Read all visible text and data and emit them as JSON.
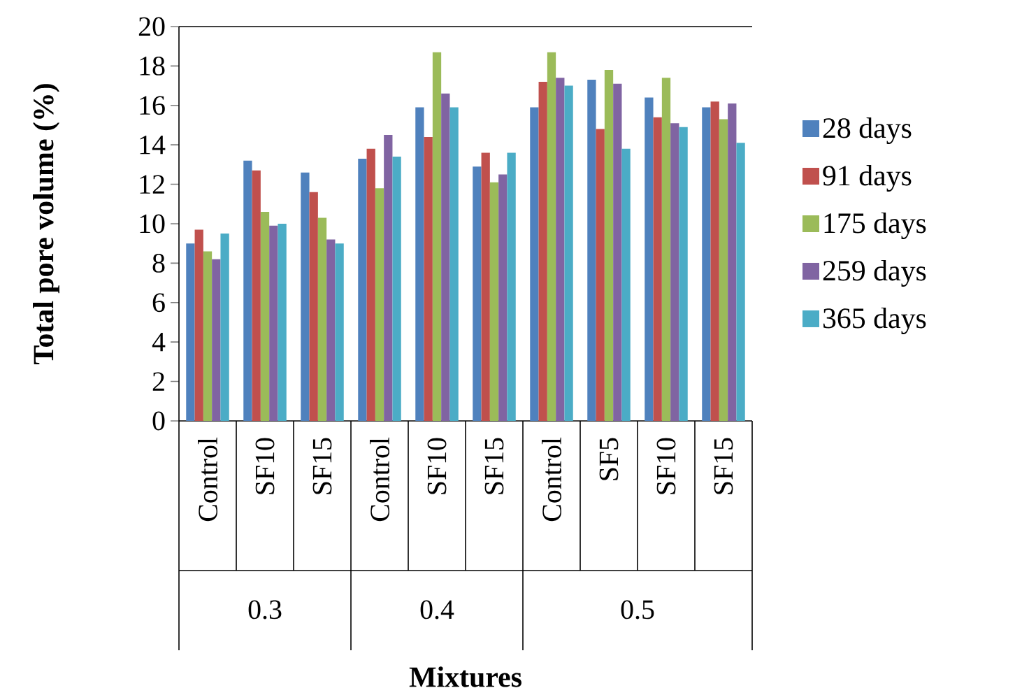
{
  "chart_data": {
    "type": "bar",
    "xlabel": "Mixtures",
    "ylabel": "Total pore volume (%)",
    "categories": [
      "Control",
      "SF10",
      "SF15",
      "Control",
      "SF10",
      "SF15",
      "Control",
      "SF5",
      "SF10",
      "SF15"
    ],
    "annotations": [
      "0.3",
      "0.4",
      "0.5"
    ],
    "series": [
      {
        "name": "28 days",
        "color": "#4f81bd",
        "values": [
          9.0,
          13.2,
          12.6,
          13.3,
          15.9,
          12.9,
          15.9,
          17.3,
          16.4,
          15.9
        ]
      },
      {
        "name": "91 days",
        "color": "#c0504d",
        "values": [
          9.7,
          12.7,
          11.6,
          13.8,
          14.4,
          13.6,
          17.2,
          14.8,
          15.4,
          16.2
        ]
      },
      {
        "name": "175 days",
        "color": "#9bbb59",
        "values": [
          8.6,
          10.6,
          10.3,
          11.8,
          18.7,
          12.1,
          18.7,
          17.8,
          17.4,
          15.3
        ]
      },
      {
        "name": "259 days",
        "color": "#8064a2",
        "values": [
          8.2,
          9.9,
          9.2,
          14.5,
          16.6,
          12.5,
          17.4,
          17.1,
          15.1,
          16.1
        ]
      },
      {
        "name": "365 days",
        "color": "#4bacc6",
        "values": [
          9.5,
          10.0,
          9.0,
          13.4,
          15.9,
          13.6,
          17.0,
          13.8,
          14.9,
          14.1
        ]
      }
    ],
    "ylim": [
      0,
      20
    ],
    "yticks": [
      0,
      2,
      4,
      6,
      8,
      10,
      12,
      14,
      16,
      18,
      20
    ],
    "legend": "right"
  }
}
